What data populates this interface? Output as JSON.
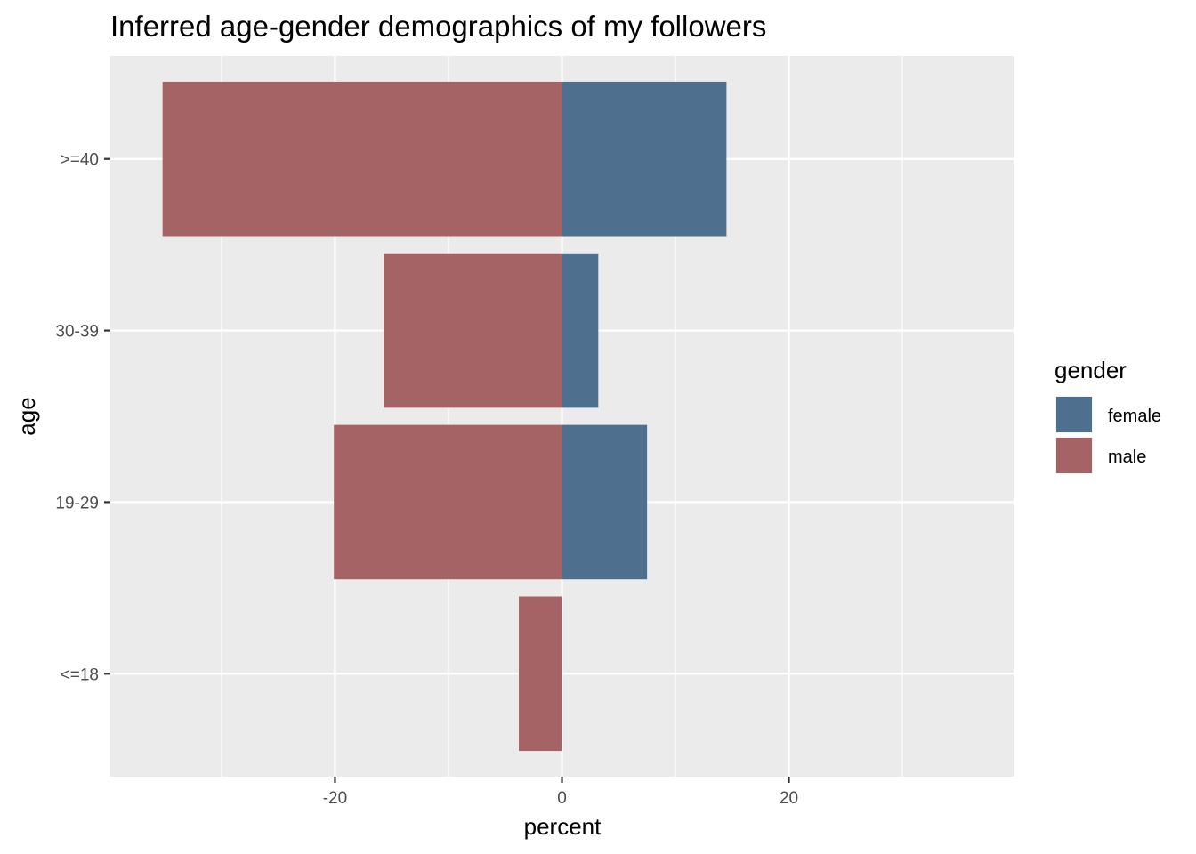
{
  "chart_data": {
    "type": "bar",
    "orientation": "horizontal",
    "title": "Inferred age-gender demographics of my followers",
    "xlabel": "percent",
    "ylabel": "age",
    "categories": [
      "<=18",
      "19-29",
      "30-39",
      ">=40"
    ],
    "series": [
      {
        "name": "female",
        "color": "#4e6f8e",
        "values": [
          0,
          7.5,
          3.2,
          14.5
        ]
      },
      {
        "name": "male",
        "color": "#a56366",
        "values": [
          -3.8,
          -20.1,
          -15.7,
          -35.2
        ]
      }
    ],
    "xlim": [
      -39.8,
      39.8
    ],
    "x_ticks": [
      -20,
      0,
      20
    ],
    "x_tick_labels": [
      "-20",
      "0",
      "20"
    ],
    "legend": {
      "title": "gender",
      "position": "right"
    },
    "grid": true,
    "panel_background": "#ebebeb",
    "grid_color": "#ffffff"
  }
}
